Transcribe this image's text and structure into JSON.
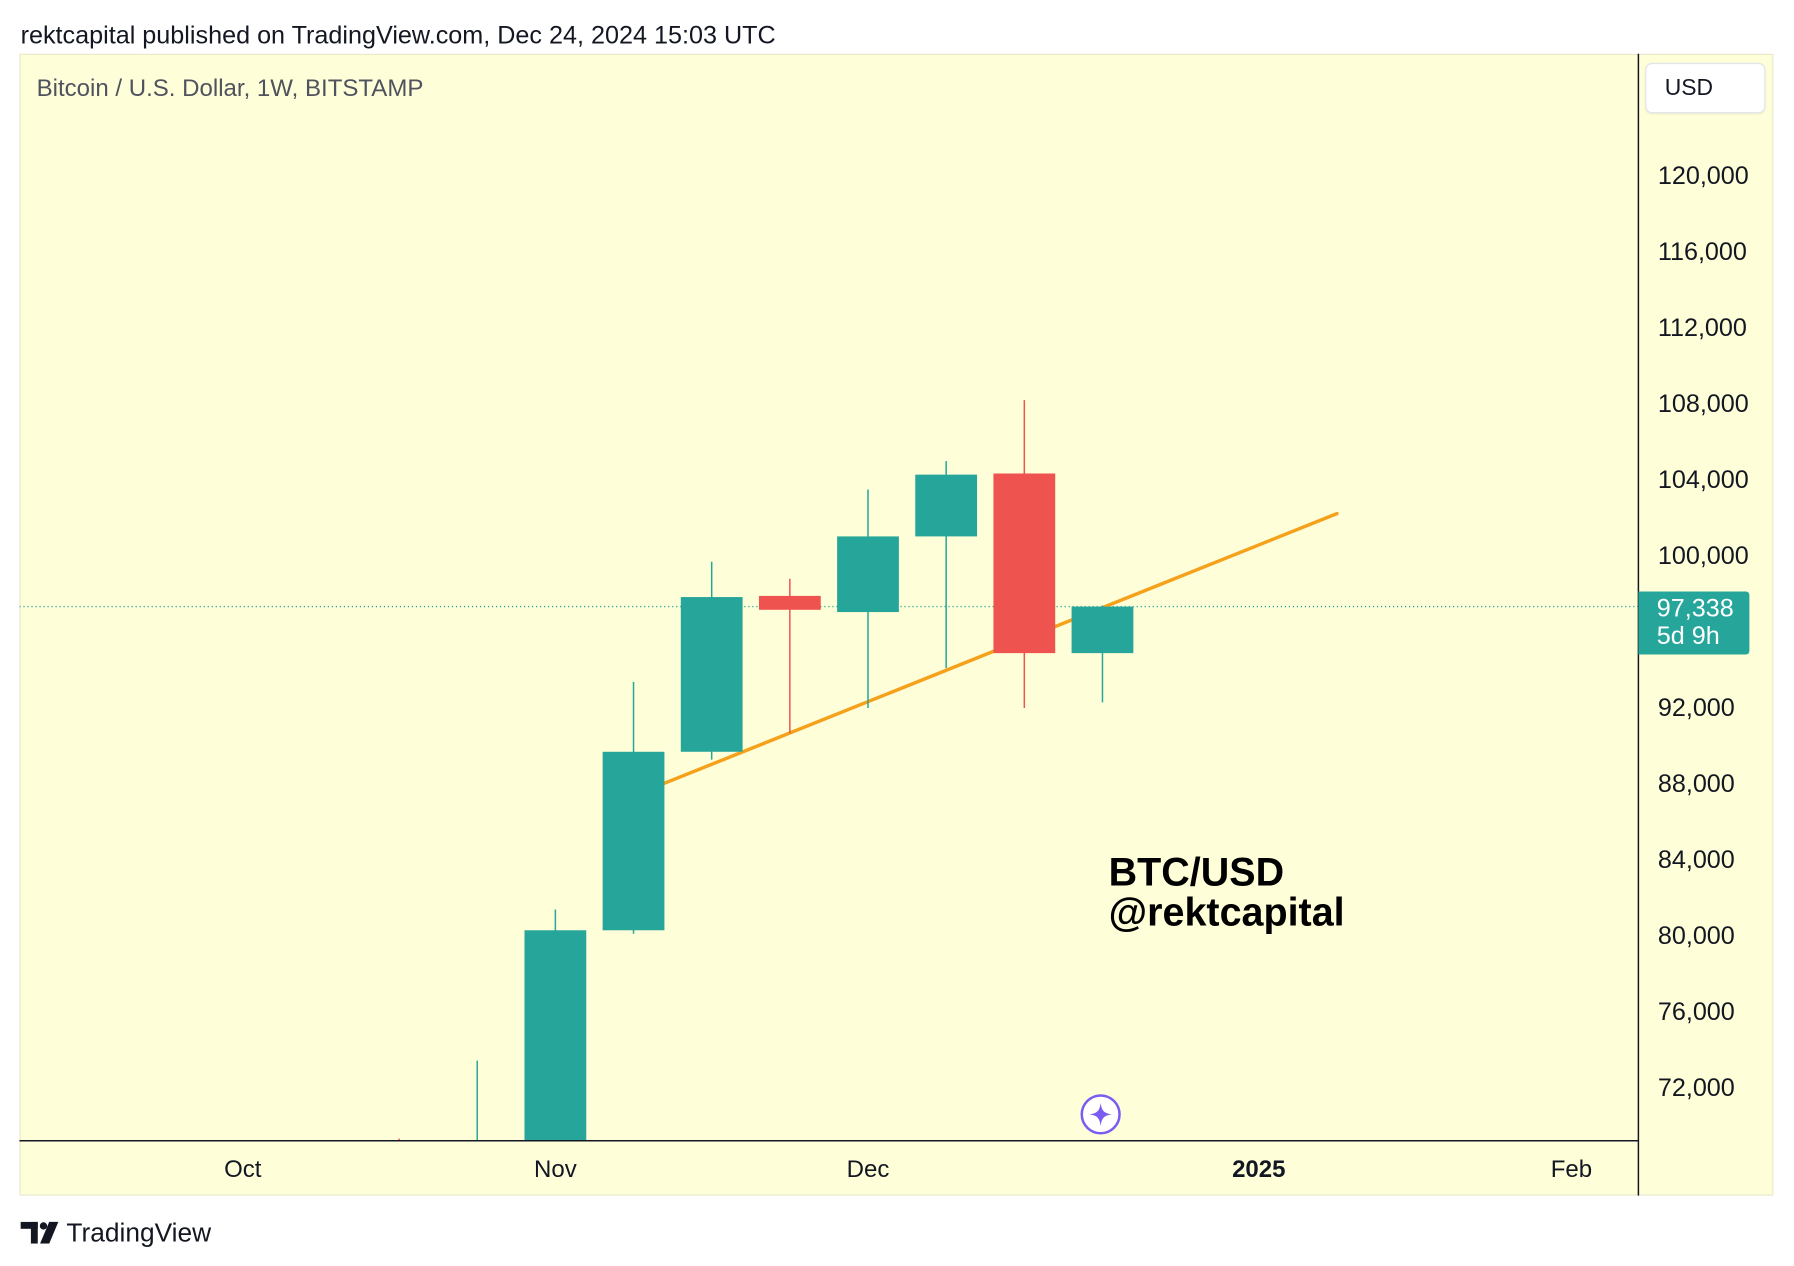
{
  "header": {
    "publish_line": "rektcapital published on TradingView.com, Dec 24, 2024 15:03 UTC"
  },
  "price_scale": {
    "currency_button": "USD"
  },
  "event_marker": {
    "icon": "sparkle-icon"
  },
  "footer": {
    "logo_icon": "tradingview-logo-icon",
    "brand": "TradingView"
  },
  "colors": {
    "chart_background": "#FEFED8",
    "up_candle": "#26A69A",
    "down_candle": "#EF5350",
    "trendline": "#F5A11C",
    "event_marker": "#7B5CF0",
    "axis_text": "#131722",
    "annotation_text": "#000000"
  },
  "chart_data": {
    "type": "bar",
    "subtype": "candlestick",
    "title": "Bitcoin / U.S. Dollar, 1W, BITSTAMP",
    "y_axis_position": "right",
    "grid": false,
    "xlim": [
      "2024-09-17",
      "2025-02-09"
    ],
    "ylim": [
      69240,
      126420
    ],
    "x_ticks": [
      {
        "label": "Oct",
        "date": "2024-10-07"
      },
      {
        "label": "Nov",
        "date": "2024-11-04"
      },
      {
        "label": "Dec",
        "date": "2024-12-02"
      },
      {
        "label": "2025",
        "date": "2025-01-06"
      },
      {
        "label": "Feb",
        "date": "2025-02-03"
      }
    ],
    "y_ticks": [
      "120,000",
      "116,000",
      "112,000",
      "108,000",
      "104,000",
      "100,000",
      "92,000",
      "88,000",
      "84,000",
      "80,000",
      "76,000",
      "72,000"
    ],
    "candles": [
      {
        "date": "2024-10-21",
        "open": 69000,
        "high": 69350,
        "low": 65100,
        "close": 68000
      },
      {
        "date": "2024-10-28",
        "open": 68000,
        "high": 73450,
        "low": 66800,
        "close": 68800
      },
      {
        "date": "2024-11-04",
        "open": 68800,
        "high": 81400,
        "low": 66800,
        "close": 80310
      },
      {
        "date": "2024-11-11",
        "open": 80310,
        "high": 93380,
        "low": 80130,
        "close": 89700
      },
      {
        "date": "2024-11-18",
        "open": 89700,
        "high": 99700,
        "low": 89290,
        "close": 97840
      },
      {
        "date": "2024-11-25",
        "open": 97900,
        "high": 98800,
        "low": 90670,
        "close": 97170
      },
      {
        "date": "2024-12-02",
        "open": 97050,
        "high": 103500,
        "low": 92000,
        "close": 101030
      },
      {
        "date": "2024-12-09",
        "open": 101030,
        "high": 105000,
        "low": 94100,
        "close": 104280
      },
      {
        "date": "2024-12-16",
        "open": 104340,
        "high": 108200,
        "low": 92000,
        "close": 94890
      },
      {
        "date": "2024-12-23",
        "open": 94890,
        "high": 97400,
        "low": 92300,
        "close": 97338
      }
    ],
    "trendline": [
      {
        "date": "2024-11-13 16:00",
        "price": 88020
      },
      {
        "date": "2025-01-13",
        "price": 102230
      }
    ],
    "last_price": {
      "price": "97,338",
      "countdown": "5d 9h"
    },
    "annotations": [
      "BTC/USD",
      "@rektcapital"
    ]
  }
}
